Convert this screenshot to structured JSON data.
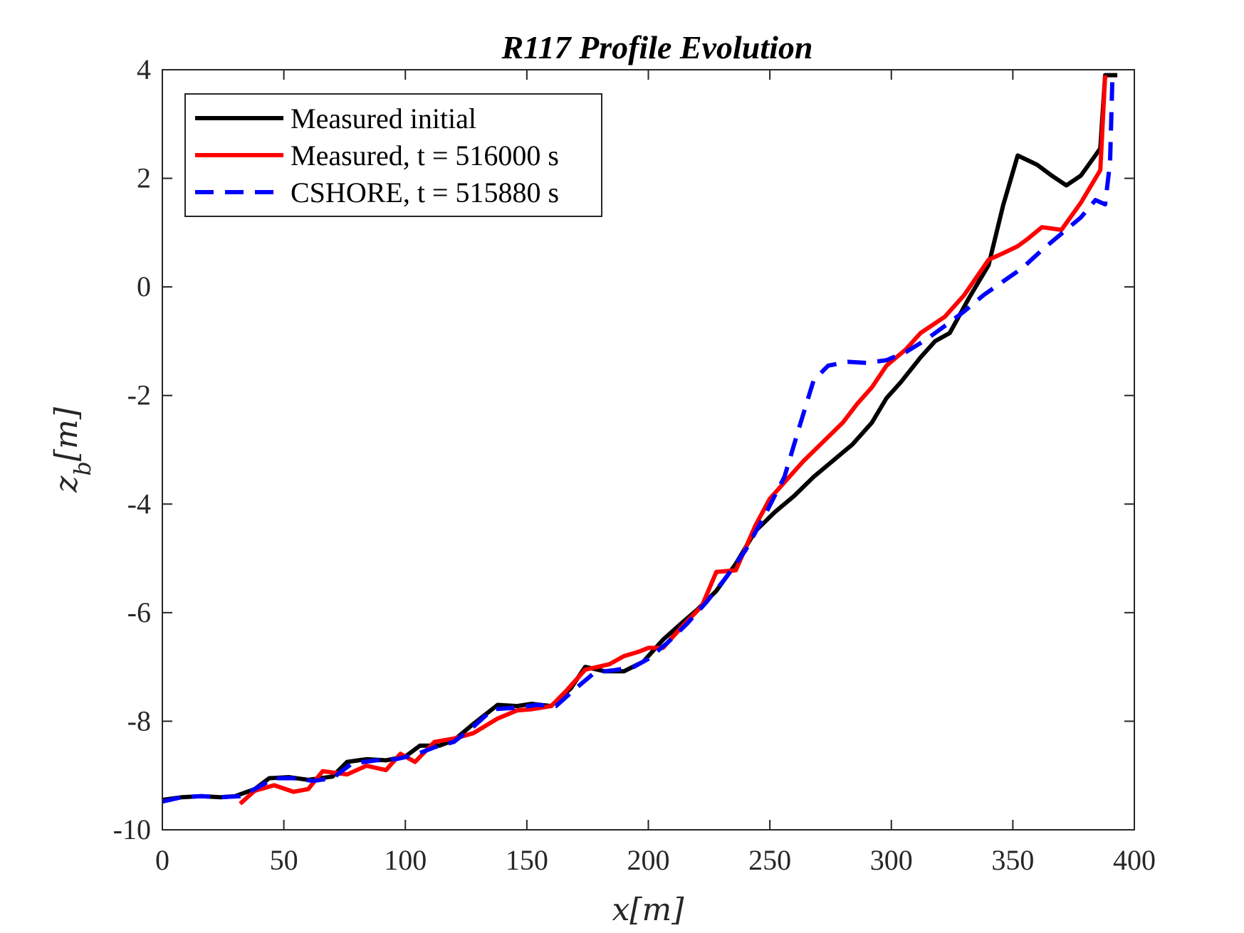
{
  "chart_data": {
    "type": "line",
    "title": "R117 Profile Evolution",
    "xlabel": "x[m]",
    "ylabel": "z_b[m]",
    "xlim": [
      0,
      400
    ],
    "ylim": [
      -10,
      4
    ],
    "x_ticks": [
      0,
      50,
      100,
      150,
      200,
      250,
      300,
      350,
      400
    ],
    "y_ticks": [
      -10,
      -8,
      -6,
      -4,
      -2,
      0,
      2,
      4
    ],
    "grid": false,
    "legend_position": "top-left",
    "series": [
      {
        "name": "Measured initial",
        "color": "#000000",
        "dash": "solid",
        "points": [
          [
            0,
            -9.45
          ],
          [
            8,
            -9.4
          ],
          [
            16,
            -9.38
          ],
          [
            24,
            -9.4
          ],
          [
            30,
            -9.38
          ],
          [
            38,
            -9.25
          ],
          [
            44,
            -9.05
          ],
          [
            52,
            -9.03
          ],
          [
            60,
            -9.08
          ],
          [
            70,
            -9.02
          ],
          [
            76,
            -8.75
          ],
          [
            84,
            -8.7
          ],
          [
            92,
            -8.72
          ],
          [
            100,
            -8.65
          ],
          [
            106,
            -8.45
          ],
          [
            114,
            -8.45
          ],
          [
            120,
            -8.35
          ],
          [
            128,
            -8.05
          ],
          [
            138,
            -7.7
          ],
          [
            146,
            -7.72
          ],
          [
            152,
            -7.68
          ],
          [
            160,
            -7.72
          ],
          [
            168,
            -7.4
          ],
          [
            174,
            -7.0
          ],
          [
            182,
            -7.08
          ],
          [
            190,
            -7.08
          ],
          [
            198,
            -6.9
          ],
          [
            206,
            -6.5
          ],
          [
            214,
            -6.18
          ],
          [
            220,
            -5.95
          ],
          [
            228,
            -5.6
          ],
          [
            236,
            -5.1
          ],
          [
            244,
            -4.5
          ],
          [
            252,
            -4.15
          ],
          [
            260,
            -3.85
          ],
          [
            268,
            -3.5
          ],
          [
            276,
            -3.2
          ],
          [
            284,
            -2.9
          ],
          [
            292,
            -2.5
          ],
          [
            298,
            -2.05
          ],
          [
            304,
            -1.75
          ],
          [
            312,
            -1.3
          ],
          [
            318,
            -1.0
          ],
          [
            324,
            -0.85
          ],
          [
            332,
            -0.2
          ],
          [
            340,
            0.4
          ],
          [
            346,
            1.5
          ],
          [
            352,
            2.42
          ],
          [
            360,
            2.25
          ],
          [
            366,
            2.05
          ],
          [
            372,
            1.87
          ],
          [
            378,
            2.05
          ],
          [
            386,
            2.55
          ],
          [
            388,
            3.9
          ],
          [
            393,
            3.9
          ]
        ]
      },
      {
        "name": "Measured, t = 516000 s",
        "color": "#ff0000",
        "dash": "solid",
        "points": [
          [
            32,
            -9.52
          ],
          [
            38,
            -9.28
          ],
          [
            46,
            -9.18
          ],
          [
            54,
            -9.3
          ],
          [
            60,
            -9.25
          ],
          [
            66,
            -8.92
          ],
          [
            76,
            -8.98
          ],
          [
            84,
            -8.82
          ],
          [
            92,
            -8.9
          ],
          [
            98,
            -8.6
          ],
          [
            104,
            -8.75
          ],
          [
            112,
            -8.38
          ],
          [
            120,
            -8.32
          ],
          [
            128,
            -8.22
          ],
          [
            138,
            -7.95
          ],
          [
            146,
            -7.8
          ],
          [
            152,
            -7.78
          ],
          [
            160,
            -7.72
          ],
          [
            166,
            -7.45
          ],
          [
            174,
            -7.05
          ],
          [
            184,
            -6.95
          ],
          [
            190,
            -6.8
          ],
          [
            196,
            -6.72
          ],
          [
            200,
            -6.65
          ],
          [
            206,
            -6.65
          ],
          [
            214,
            -6.25
          ],
          [
            222,
            -5.88
          ],
          [
            228,
            -5.25
          ],
          [
            236,
            -5.22
          ],
          [
            244,
            -4.4
          ],
          [
            250,
            -3.9
          ],
          [
            256,
            -3.6
          ],
          [
            264,
            -3.2
          ],
          [
            272,
            -2.85
          ],
          [
            280,
            -2.5
          ],
          [
            286,
            -2.15
          ],
          [
            292,
            -1.85
          ],
          [
            298,
            -1.45
          ],
          [
            306,
            -1.15
          ],
          [
            312,
            -0.85
          ],
          [
            322,
            -0.55
          ],
          [
            330,
            -0.15
          ],
          [
            340,
            0.5
          ],
          [
            346,
            0.62
          ],
          [
            352,
            0.75
          ],
          [
            356,
            0.88
          ],
          [
            362,
            1.1
          ],
          [
            370,
            1.05
          ],
          [
            378,
            1.55
          ],
          [
            386,
            2.15
          ],
          [
            388,
            3.9
          ]
        ]
      },
      {
        "name": "CSHORE, t = 515880 s",
        "color": "#0000ff",
        "dash": "dashed",
        "points": [
          [
            0,
            -9.48
          ],
          [
            8,
            -9.4
          ],
          [
            16,
            -9.38
          ],
          [
            24,
            -9.4
          ],
          [
            32,
            -9.38
          ],
          [
            38,
            -9.25
          ],
          [
            46,
            -9.05
          ],
          [
            54,
            -9.05
          ],
          [
            62,
            -9.1
          ],
          [
            70,
            -9.05
          ],
          [
            78,
            -8.78
          ],
          [
            88,
            -8.72
          ],
          [
            96,
            -8.7
          ],
          [
            104,
            -8.62
          ],
          [
            112,
            -8.48
          ],
          [
            120,
            -8.38
          ],
          [
            128,
            -8.1
          ],
          [
            136,
            -7.78
          ],
          [
            146,
            -7.75
          ],
          [
            154,
            -7.7
          ],
          [
            162,
            -7.72
          ],
          [
            170,
            -7.4
          ],
          [
            178,
            -7.1
          ],
          [
            186,
            -7.06
          ],
          [
            194,
            -7.0
          ],
          [
            200,
            -6.85
          ],
          [
            208,
            -6.55
          ],
          [
            216,
            -6.2
          ],
          [
            224,
            -5.8
          ],
          [
            232,
            -5.35
          ],
          [
            240,
            -4.85
          ],
          [
            248,
            -4.2
          ],
          [
            256,
            -3.5
          ],
          [
            262,
            -2.6
          ],
          [
            268,
            -1.72
          ],
          [
            274,
            -1.45
          ],
          [
            282,
            -1.38
          ],
          [
            290,
            -1.4
          ],
          [
            298,
            -1.35
          ],
          [
            306,
            -1.2
          ],
          [
            314,
            -0.98
          ],
          [
            322,
            -0.72
          ],
          [
            330,
            -0.45
          ],
          [
            338,
            -0.15
          ],
          [
            346,
            0.1
          ],
          [
            354,
            0.35
          ],
          [
            362,
            0.68
          ],
          [
            370,
            0.98
          ],
          [
            378,
            1.28
          ],
          [
            384,
            1.6
          ],
          [
            388,
            1.52
          ],
          [
            390,
            2.3
          ],
          [
            391,
            3.9
          ]
        ]
      }
    ]
  }
}
